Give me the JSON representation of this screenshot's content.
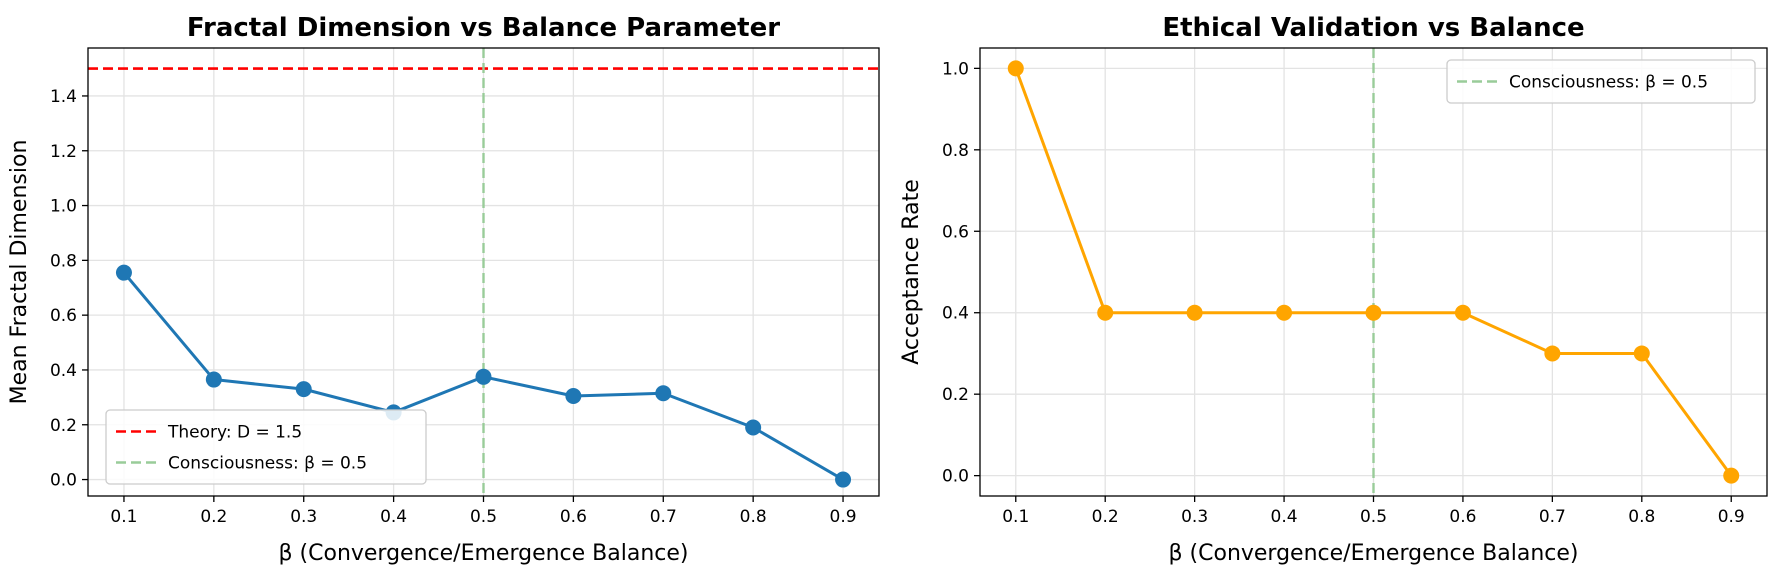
{
  "chart_data": [
    {
      "type": "line",
      "title": "Fractal Dimension vs Balance Parameter",
      "xlabel": "β (Convergence/Emergence Balance)",
      "ylabel": "Mean Fractal Dimension",
      "x": [
        0.1,
        0.2,
        0.3,
        0.4,
        0.5,
        0.6,
        0.7,
        0.8,
        0.9
      ],
      "xticks": [
        "0.1",
        "0.2",
        "0.3",
        "0.4",
        "0.5",
        "0.6",
        "0.7",
        "0.8",
        "0.9"
      ],
      "xlim": [
        0.06,
        0.94
      ],
      "ylim": [
        -0.06,
        1.575
      ],
      "yticks": [
        "0.0",
        "0.2",
        "0.4",
        "0.6",
        "0.8",
        "1.0",
        "1.2",
        "1.4"
      ],
      "grid": true,
      "legend_position": "lower-left",
      "series": [
        {
          "values": [
            0.755,
            0.365,
            0.33,
            0.245,
            0.375,
            0.305,
            0.315,
            0.19,
            0.0
          ],
          "color": "#1f77b4"
        }
      ],
      "reference_lines": [
        {
          "orientation": "horizontal",
          "value": 1.5,
          "label": "Theory: D = 1.5",
          "color": "#ff0000",
          "style": "dashed"
        },
        {
          "orientation": "vertical",
          "value": 0.5,
          "label": "Consciousness: β = 0.5",
          "color": "#99cc99",
          "style": "dashed"
        }
      ]
    },
    {
      "type": "line",
      "title": "Ethical Validation vs Balance",
      "xlabel": "β (Convergence/Emergence Balance)",
      "ylabel": "Acceptance Rate",
      "x": [
        0.1,
        0.2,
        0.3,
        0.4,
        0.5,
        0.6,
        0.7,
        0.8,
        0.9
      ],
      "xticks": [
        "0.1",
        "0.2",
        "0.3",
        "0.4",
        "0.5",
        "0.6",
        "0.7",
        "0.8",
        "0.9"
      ],
      "xlim": [
        0.06,
        0.94
      ],
      "ylim": [
        -0.05,
        1.05
      ],
      "yticks": [
        "0.0",
        "0.2",
        "0.4",
        "0.6",
        "0.8",
        "1.0"
      ],
      "grid": true,
      "legend_position": "upper-right",
      "series": [
        {
          "values": [
            1.0,
            0.4,
            0.4,
            0.4,
            0.4,
            0.4,
            0.3,
            0.3,
            0.0
          ],
          "color": "#ffa500"
        }
      ],
      "reference_lines": [
        {
          "orientation": "vertical",
          "value": 0.5,
          "label": "Consciousness: β = 0.5",
          "color": "#99cc99",
          "style": "dashed"
        }
      ]
    }
  ]
}
